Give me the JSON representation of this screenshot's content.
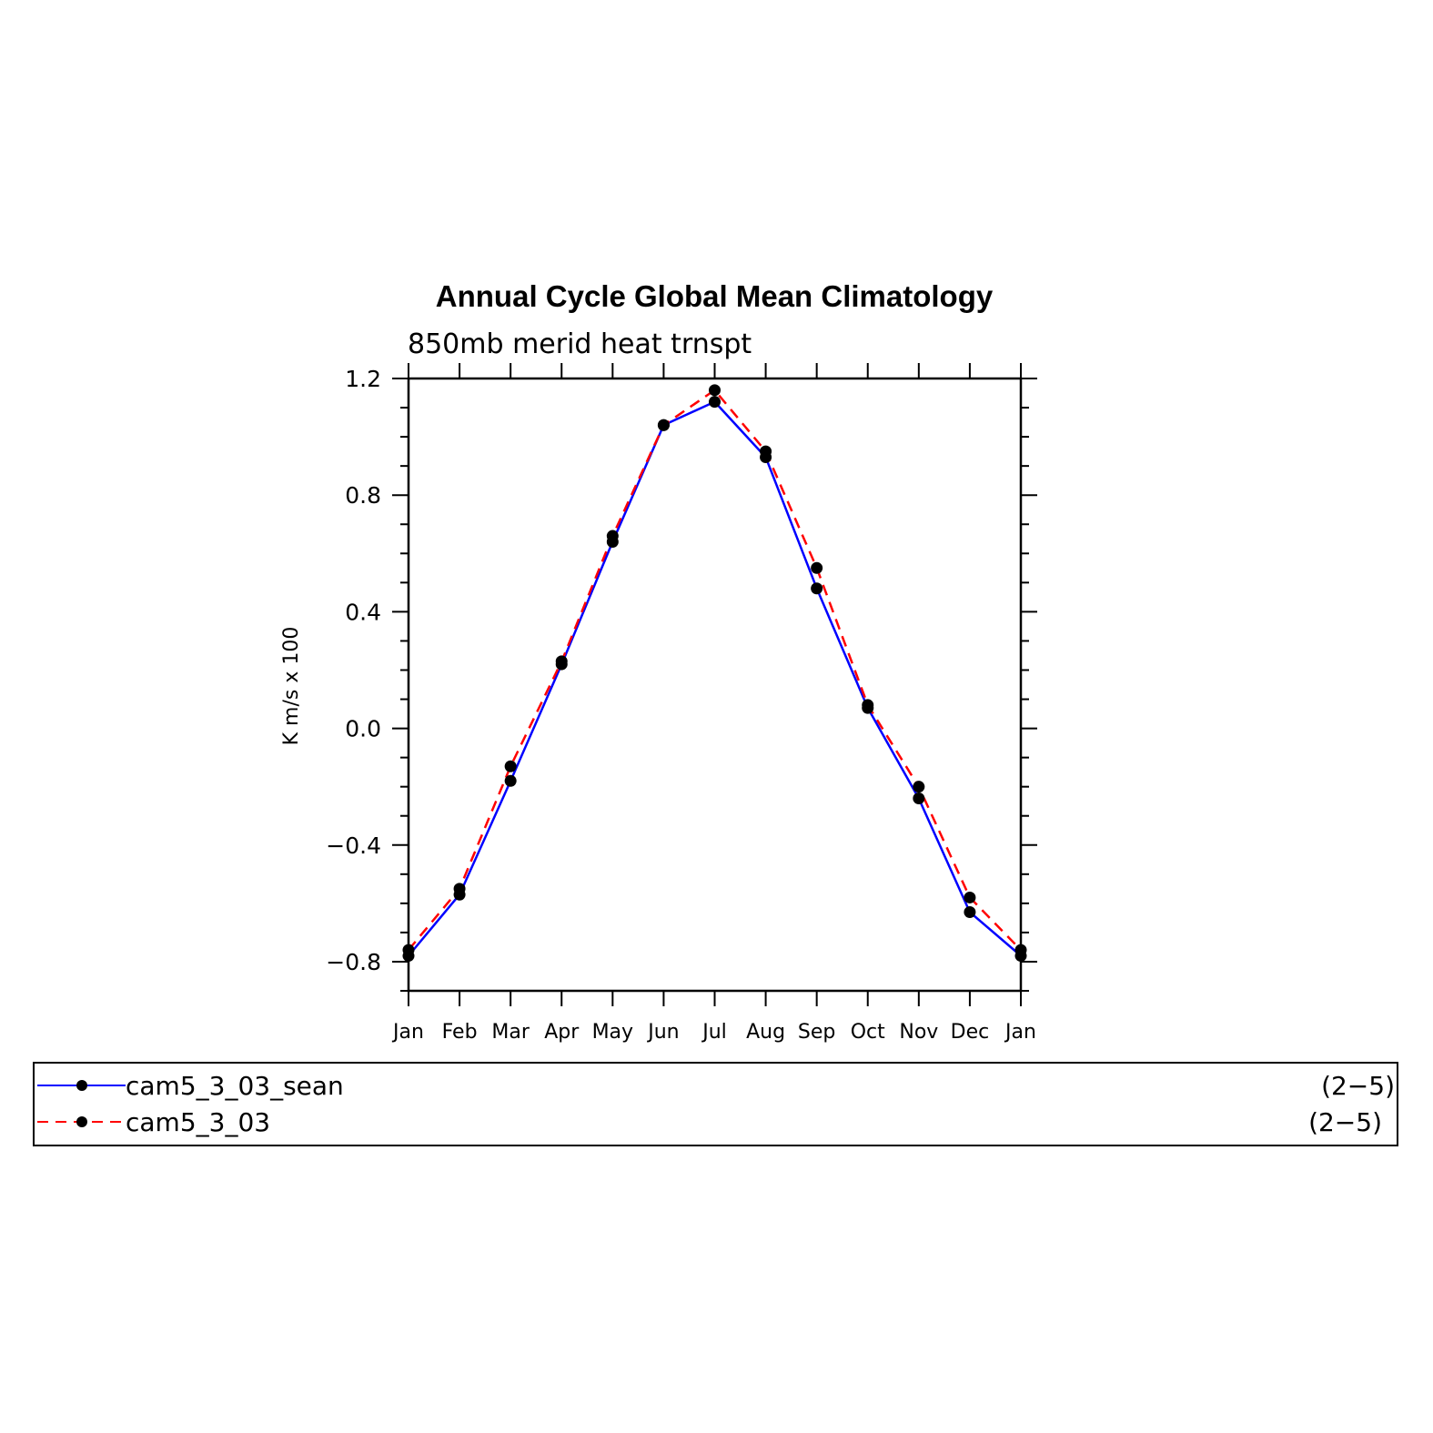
{
  "chart_data": {
    "type": "line",
    "title": "Annual Cycle Global Mean Climatology",
    "subtitle": "850mb merid heat trnspt",
    "ylabel": "K m/s x 100",
    "xlabel": "",
    "categories": [
      "Jan",
      "Feb",
      "Mar",
      "Apr",
      "May",
      "Jun",
      "Jul",
      "Aug",
      "Sep",
      "Oct",
      "Nov",
      "Dec",
      "Jan"
    ],
    "ylim": [
      -0.9,
      1.2
    ],
    "yticks": [
      -0.8,
      -0.4,
      0.0,
      0.4,
      0.8,
      1.2
    ],
    "ytick_labels": [
      "−0.8",
      "−0.4",
      "0.0",
      "0.4",
      "0.8",
      "1.2"
    ],
    "series": [
      {
        "name": "cam5_3_03_sean",
        "color": "#0000ff",
        "dash": "solid",
        "marker": "filled-circle",
        "values": [
          -0.78,
          -0.57,
          -0.18,
          0.22,
          0.64,
          1.04,
          1.12,
          0.93,
          0.48,
          0.07,
          -0.24,
          -0.63,
          -0.78
        ]
      },
      {
        "name": "cam5_3_03",
        "color": "#ff0000",
        "dash": "dashed",
        "marker": "filled-circle",
        "values": [
          -0.76,
          -0.55,
          -0.13,
          0.23,
          0.66,
          1.04,
          1.16,
          0.95,
          0.55,
          0.08,
          -0.2,
          -0.58,
          -0.76
        ]
      }
    ],
    "grid": false,
    "legend_position": "bottom"
  },
  "legend": {
    "items": [
      {
        "label": "cam5_3_03_sean",
        "range": "(2−5)"
      },
      {
        "label": "cam5_3_03",
        "range": "(2−5)"
      }
    ]
  }
}
